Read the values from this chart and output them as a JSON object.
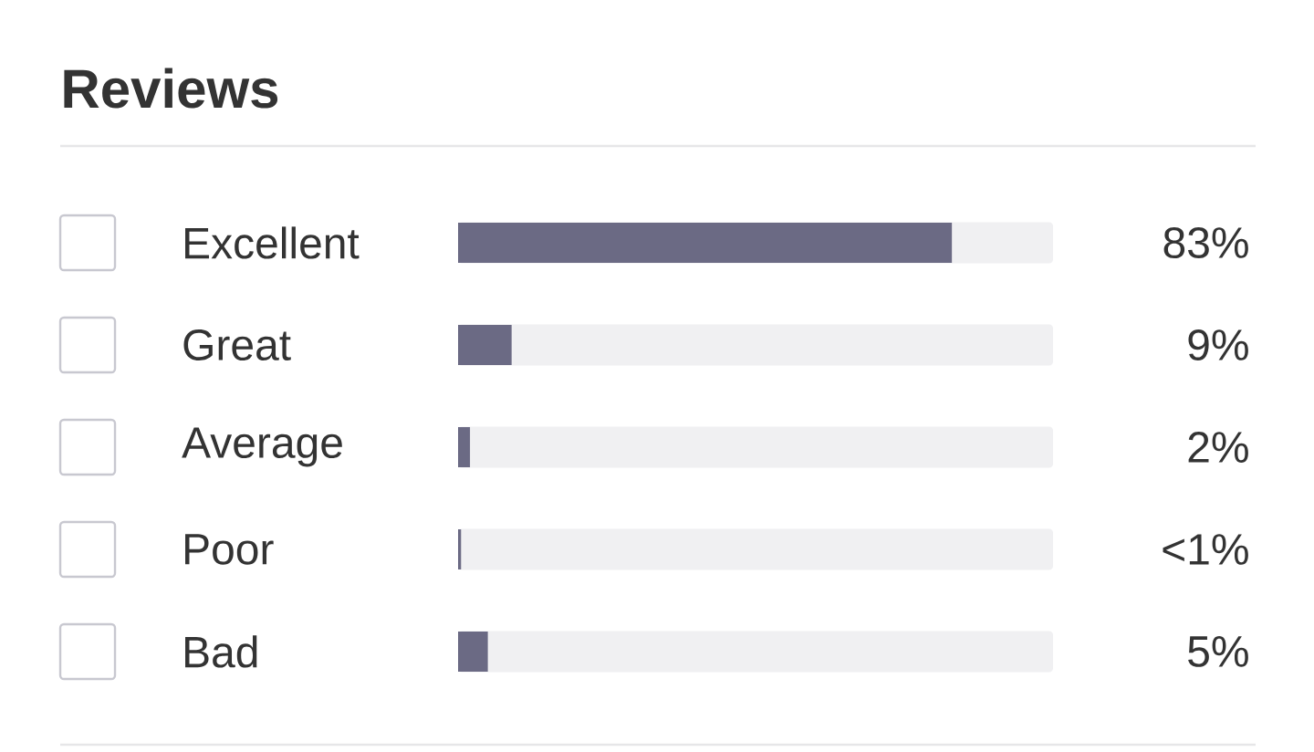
{
  "chart_data": {
    "type": "bar",
    "orientation": "horizontal",
    "title": "Reviews",
    "categories": [
      "Excellent",
      "Great",
      "Average",
      "Poor",
      "Bad"
    ],
    "values": [
      83,
      9,
      2,
      0.5,
      5
    ],
    "value_labels": [
      "83%",
      "9%",
      "2%",
      "<1%",
      "5%"
    ],
    "color": "#6b6a84",
    "xlim": [
      0,
      100
    ],
    "tick_labels": "y"
  }
}
